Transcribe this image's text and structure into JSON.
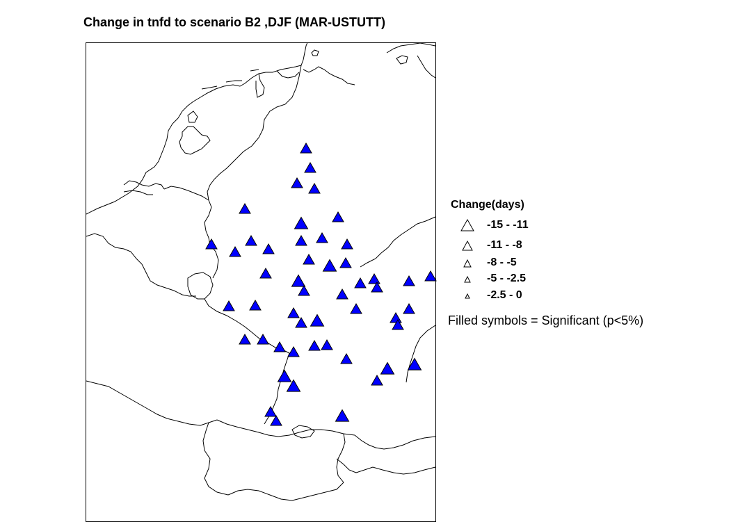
{
  "title": "Change in tnfd to scenario B2 ,DJF (MAR-USTUTT)",
  "legend": {
    "title": "Change(days)",
    "items": [
      {
        "label": "-15 - -11",
        "size": 5
      },
      {
        "label": "-11 - -8",
        "size": 4
      },
      {
        "label": "-8 - -5",
        "size": 3
      },
      {
        "label": "-5 - -2.5",
        "size": 2
      },
      {
        "label": "-2.5 - 0",
        "size": 1
      }
    ],
    "note": "Filled symbols = Significant (p<5%)"
  },
  "colors": {
    "filled": "#0000ff",
    "outline": "#000000",
    "border": "#000000"
  },
  "map": {
    "region": "Western/Central Europe (Benelux, Germany, NE France, Switzerland)"
  }
}
